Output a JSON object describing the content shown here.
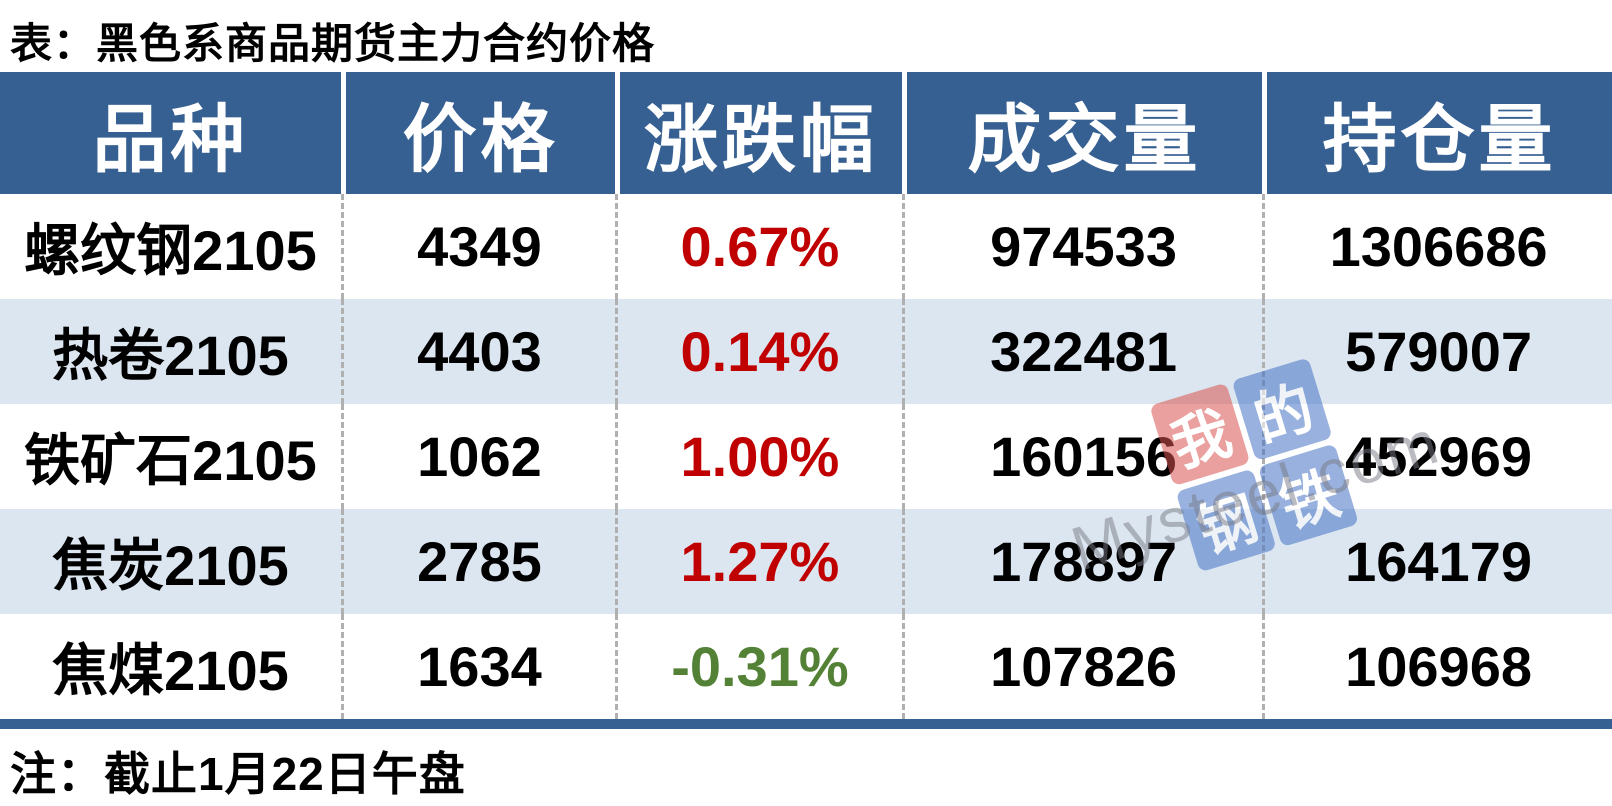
{
  "title": "表：黑色系商品期货主力合约价格",
  "note": "注：截止1月22日午盘",
  "table": {
    "columns": [
      "品种",
      "价格",
      "涨跌幅",
      "成交量",
      "持仓量"
    ],
    "rows": [
      {
        "variety": "螺纹钢2105",
        "price": "4349",
        "change": "0.67%",
        "change_dir": "up",
        "volume": "974533",
        "open_interest": "1306686"
      },
      {
        "variety": "热卷2105",
        "price": "4403",
        "change": "0.14%",
        "change_dir": "up",
        "volume": "322481",
        "open_interest": "579007"
      },
      {
        "variety": "铁矿石2105",
        "price": "1062",
        "change": "1.00%",
        "change_dir": "up",
        "volume": "160156",
        "open_interest": "452969"
      },
      {
        "variety": "焦炭2105",
        "price": "2785",
        "change": "1.27%",
        "change_dir": "up",
        "volume": "178897",
        "open_interest": "164179"
      },
      {
        "variety": "焦煤2105",
        "price": "1634",
        "change": "-0.31%",
        "change_dir": "down",
        "volume": "107826",
        "open_interest": "106968"
      }
    ]
  },
  "watermark": {
    "logo_chars": [
      "我",
      "的",
      "钢",
      "铁"
    ],
    "text": "Mysteel.com"
  },
  "chart_data": {
    "type": "table",
    "title": "表：黑色系商品期货主力合约价格",
    "columns": [
      "品种",
      "价格",
      "涨跌幅",
      "成交量",
      "持仓量"
    ],
    "rows": [
      [
        "螺纹钢2105",
        4349,
        "0.67%",
        974533,
        1306686
      ],
      [
        "热卷2105",
        4403,
        "0.14%",
        322481,
        579007
      ],
      [
        "铁矿石2105",
        1062,
        "1.00%",
        160156,
        452969
      ],
      [
        "焦炭2105",
        2785,
        "1.27%",
        178897,
        164179
      ],
      [
        "焦煤2105",
        1634,
        "-0.31%",
        107826,
        106968
      ]
    ],
    "note": "注：截止1月22日午盘",
    "change_colors": {
      "positive": "#c00000",
      "negative": "#538135"
    }
  },
  "colors": {
    "header_bg": "#366092",
    "row_alt_bg": "#dce6f1",
    "up_red": "#c00000",
    "down_green": "#538135",
    "bottom_bar": "#366092",
    "logo_red_tile": "#d9534f",
    "logo_blue_tile": "#4472c4",
    "watermark_text": "#787a84"
  }
}
